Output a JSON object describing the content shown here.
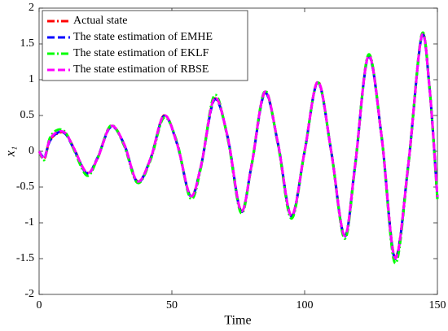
{
  "chart_data": {
    "type": "line",
    "xlabel": "Time",
    "ylabel": "x₁",
    "x": [
      0,
      2,
      4,
      7,
      10,
      13,
      18,
      22,
      27,
      32,
      37,
      42,
      47,
      52,
      57,
      61,
      66,
      71,
      76,
      80,
      85,
      90,
      95,
      100,
      105,
      110,
      115,
      119,
      124,
      129,
      134,
      139,
      144,
      147,
      150
    ],
    "series": [
      {
        "name": "Actual state",
        "color": "#ff0000",
        "dash": "dashdot",
        "values": [
          0,
          -0.1,
          0.15,
          0.25,
          0.25,
          0.05,
          -0.3,
          -0.1,
          0.35,
          0.1,
          -0.42,
          -0.1,
          0.5,
          0.1,
          -0.62,
          -0.2,
          0.73,
          0.2,
          -0.83,
          -0.2,
          0.82,
          0.1,
          -0.9,
          0,
          0.97,
          0,
          -1.18,
          -0.2,
          1.33,
          0.2,
          -1.48,
          -0.2,
          1.6,
          0.9,
          -0.65
        ]
      },
      {
        "name": "The state estimation of EMHE",
        "color": "#0000ff",
        "dash": "dashed",
        "values": [
          0,
          -0.08,
          0.14,
          0.26,
          0.24,
          0.04,
          -0.31,
          -0.09,
          0.34,
          0.1,
          -0.43,
          -0.1,
          0.49,
          0.1,
          -0.63,
          -0.2,
          0.72,
          0.2,
          -0.84,
          -0.2,
          0.81,
          0.1,
          -0.91,
          0,
          0.96,
          0,
          -1.19,
          -0.2,
          1.32,
          0.2,
          -1.5,
          -0.2,
          1.59,
          0.9,
          -0.66
        ]
      },
      {
        "name": "The state estimation of EKLF",
        "color": "#00ff00",
        "dash": "dashdot",
        "values": [
          0,
          -0.12,
          0.18,
          0.3,
          0.26,
          0.03,
          -0.34,
          -0.1,
          0.36,
          0.08,
          -0.44,
          -0.12,
          0.47,
          0.12,
          -0.66,
          -0.22,
          0.78,
          0.18,
          -0.86,
          -0.2,
          0.84,
          0.08,
          -0.94,
          0,
          0.96,
          0,
          -1.22,
          -0.22,
          1.35,
          0.2,
          -1.56,
          -0.22,
          1.62,
          0.9,
          -0.68
        ]
      },
      {
        "name": "The state estimation of RBSE",
        "color": "#ff00ff",
        "dash": "dashed",
        "values": [
          0,
          -0.1,
          0.16,
          0.27,
          0.25,
          0.05,
          -0.3,
          -0.1,
          0.35,
          0.1,
          -0.42,
          -0.1,
          0.5,
          0.1,
          -0.62,
          -0.2,
          0.74,
          0.2,
          -0.83,
          -0.2,
          0.83,
          0.1,
          -0.9,
          0,
          0.97,
          0,
          -1.18,
          -0.2,
          1.33,
          0.2,
          -1.49,
          -0.2,
          1.6,
          0.9,
          -0.64
        ]
      }
    ],
    "xlim": [
      0,
      150
    ],
    "xticks": [
      0,
      50,
      100,
      150
    ],
    "ylim": [
      -2,
      2
    ],
    "yticks": [
      -2,
      -1.5,
      -1,
      -0.5,
      0,
      0.5,
      1,
      1.5,
      2
    ],
    "grid": false,
    "legend": "upper left"
  }
}
